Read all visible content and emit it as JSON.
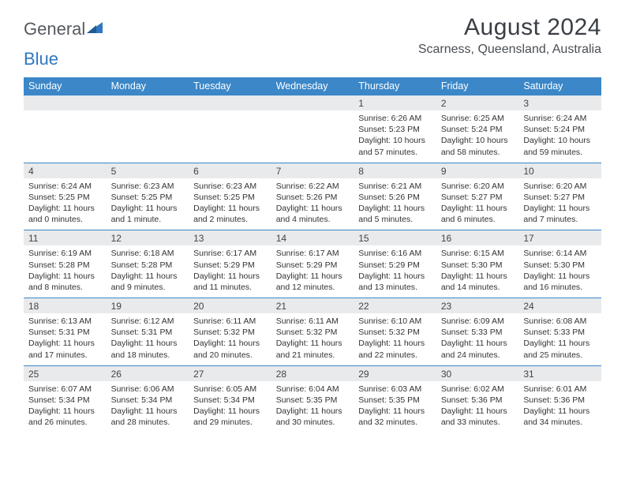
{
  "brand": {
    "word1": "General",
    "word2": "Blue"
  },
  "title": "August 2024",
  "location": "Scarness, Queensland, Australia",
  "colors": {
    "accent": "#3b87c8",
    "band": "#e8eaec",
    "text": "#333333",
    "title": "#3a3f45",
    "logo_grey": "#555a60",
    "logo_blue": "#2f78bf",
    "bg": "#ffffff"
  },
  "dow": [
    "Sunday",
    "Monday",
    "Tuesday",
    "Wednesday",
    "Thursday",
    "Friday",
    "Saturday"
  ],
  "weeks": [
    [
      null,
      null,
      null,
      null,
      {
        "n": "1",
        "sr": "Sunrise: 6:26 AM",
        "ss": "Sunset: 5:23 PM",
        "dl": "Daylight: 10 hours and 57 minutes."
      },
      {
        "n": "2",
        "sr": "Sunrise: 6:25 AM",
        "ss": "Sunset: 5:24 PM",
        "dl": "Daylight: 10 hours and 58 minutes."
      },
      {
        "n": "3",
        "sr": "Sunrise: 6:24 AM",
        "ss": "Sunset: 5:24 PM",
        "dl": "Daylight: 10 hours and 59 minutes."
      }
    ],
    [
      {
        "n": "4",
        "sr": "Sunrise: 6:24 AM",
        "ss": "Sunset: 5:25 PM",
        "dl": "Daylight: 11 hours and 0 minutes."
      },
      {
        "n": "5",
        "sr": "Sunrise: 6:23 AM",
        "ss": "Sunset: 5:25 PM",
        "dl": "Daylight: 11 hours and 1 minute."
      },
      {
        "n": "6",
        "sr": "Sunrise: 6:23 AM",
        "ss": "Sunset: 5:25 PM",
        "dl": "Daylight: 11 hours and 2 minutes."
      },
      {
        "n": "7",
        "sr": "Sunrise: 6:22 AM",
        "ss": "Sunset: 5:26 PM",
        "dl": "Daylight: 11 hours and 4 minutes."
      },
      {
        "n": "8",
        "sr": "Sunrise: 6:21 AM",
        "ss": "Sunset: 5:26 PM",
        "dl": "Daylight: 11 hours and 5 minutes."
      },
      {
        "n": "9",
        "sr": "Sunrise: 6:20 AM",
        "ss": "Sunset: 5:27 PM",
        "dl": "Daylight: 11 hours and 6 minutes."
      },
      {
        "n": "10",
        "sr": "Sunrise: 6:20 AM",
        "ss": "Sunset: 5:27 PM",
        "dl": "Daylight: 11 hours and 7 minutes."
      }
    ],
    [
      {
        "n": "11",
        "sr": "Sunrise: 6:19 AM",
        "ss": "Sunset: 5:28 PM",
        "dl": "Daylight: 11 hours and 8 minutes."
      },
      {
        "n": "12",
        "sr": "Sunrise: 6:18 AM",
        "ss": "Sunset: 5:28 PM",
        "dl": "Daylight: 11 hours and 9 minutes."
      },
      {
        "n": "13",
        "sr": "Sunrise: 6:17 AM",
        "ss": "Sunset: 5:29 PM",
        "dl": "Daylight: 11 hours and 11 minutes."
      },
      {
        "n": "14",
        "sr": "Sunrise: 6:17 AM",
        "ss": "Sunset: 5:29 PM",
        "dl": "Daylight: 11 hours and 12 minutes."
      },
      {
        "n": "15",
        "sr": "Sunrise: 6:16 AM",
        "ss": "Sunset: 5:29 PM",
        "dl": "Daylight: 11 hours and 13 minutes."
      },
      {
        "n": "16",
        "sr": "Sunrise: 6:15 AM",
        "ss": "Sunset: 5:30 PM",
        "dl": "Daylight: 11 hours and 14 minutes."
      },
      {
        "n": "17",
        "sr": "Sunrise: 6:14 AM",
        "ss": "Sunset: 5:30 PM",
        "dl": "Daylight: 11 hours and 16 minutes."
      }
    ],
    [
      {
        "n": "18",
        "sr": "Sunrise: 6:13 AM",
        "ss": "Sunset: 5:31 PM",
        "dl": "Daylight: 11 hours and 17 minutes."
      },
      {
        "n": "19",
        "sr": "Sunrise: 6:12 AM",
        "ss": "Sunset: 5:31 PM",
        "dl": "Daylight: 11 hours and 18 minutes."
      },
      {
        "n": "20",
        "sr": "Sunrise: 6:11 AM",
        "ss": "Sunset: 5:32 PM",
        "dl": "Daylight: 11 hours and 20 minutes."
      },
      {
        "n": "21",
        "sr": "Sunrise: 6:11 AM",
        "ss": "Sunset: 5:32 PM",
        "dl": "Daylight: 11 hours and 21 minutes."
      },
      {
        "n": "22",
        "sr": "Sunrise: 6:10 AM",
        "ss": "Sunset: 5:32 PM",
        "dl": "Daylight: 11 hours and 22 minutes."
      },
      {
        "n": "23",
        "sr": "Sunrise: 6:09 AM",
        "ss": "Sunset: 5:33 PM",
        "dl": "Daylight: 11 hours and 24 minutes."
      },
      {
        "n": "24",
        "sr": "Sunrise: 6:08 AM",
        "ss": "Sunset: 5:33 PM",
        "dl": "Daylight: 11 hours and 25 minutes."
      }
    ],
    [
      {
        "n": "25",
        "sr": "Sunrise: 6:07 AM",
        "ss": "Sunset: 5:34 PM",
        "dl": "Daylight: 11 hours and 26 minutes."
      },
      {
        "n": "26",
        "sr": "Sunrise: 6:06 AM",
        "ss": "Sunset: 5:34 PM",
        "dl": "Daylight: 11 hours and 28 minutes."
      },
      {
        "n": "27",
        "sr": "Sunrise: 6:05 AM",
        "ss": "Sunset: 5:34 PM",
        "dl": "Daylight: 11 hours and 29 minutes."
      },
      {
        "n": "28",
        "sr": "Sunrise: 6:04 AM",
        "ss": "Sunset: 5:35 PM",
        "dl": "Daylight: 11 hours and 30 minutes."
      },
      {
        "n": "29",
        "sr": "Sunrise: 6:03 AM",
        "ss": "Sunset: 5:35 PM",
        "dl": "Daylight: 11 hours and 32 minutes."
      },
      {
        "n": "30",
        "sr": "Sunrise: 6:02 AM",
        "ss": "Sunset: 5:36 PM",
        "dl": "Daylight: 11 hours and 33 minutes."
      },
      {
        "n": "31",
        "sr": "Sunrise: 6:01 AM",
        "ss": "Sunset: 5:36 PM",
        "dl": "Daylight: 11 hours and 34 minutes."
      }
    ]
  ]
}
